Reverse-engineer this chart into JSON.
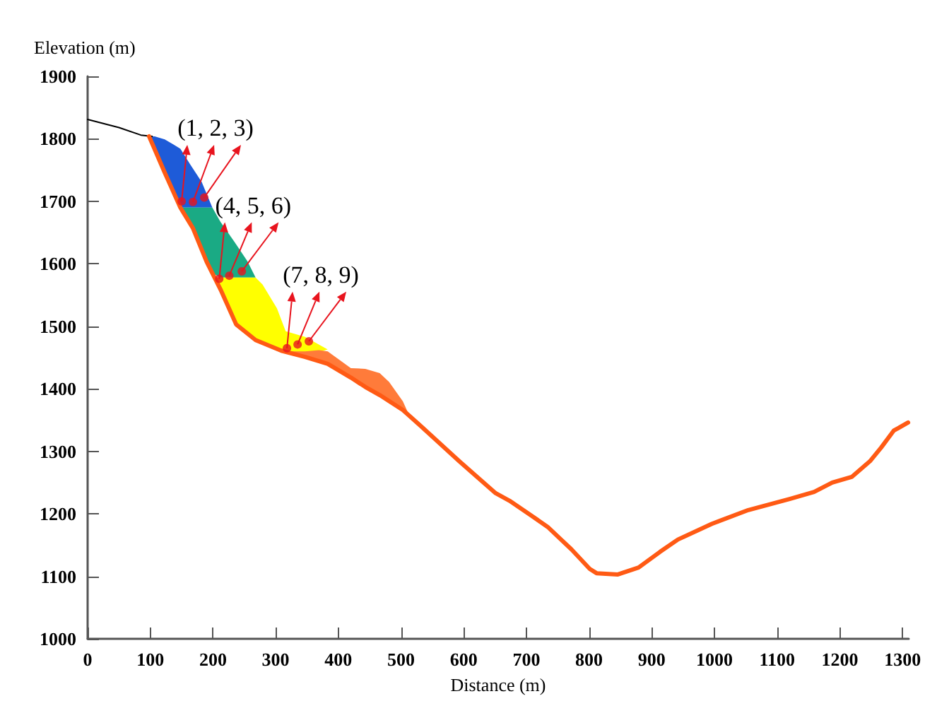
{
  "chart_data": {
    "type": "line",
    "xlabel": "Distance (m)",
    "ylabel": "Elevation (m)",
    "xlim": [
      0,
      1310
    ],
    "xticks": [
      0,
      100,
      200,
      300,
      400,
      500,
      600,
      700,
      800,
      900,
      1000,
      1100,
      1200,
      1300
    ],
    "ylim": [
      1000,
      1900
    ],
    "yticks": [
      1000,
      1100,
      1200,
      1300,
      1400,
      1500,
      1600,
      1700,
      1800,
      1900
    ],
    "grid": false,
    "line_style": "solid",
    "series": [
      {
        "type": "area",
        "color": "#1e5bd8",
        "x": [
          100,
          107,
          123,
          137,
          148,
          163,
          182,
          199,
          182,
          163,
          148,
          137,
          123,
          107
        ],
        "values": [
          1804,
          1804,
          1799,
          1791,
          1784,
          1760,
          1731,
          1690,
          1690,
          1690,
          1690,
          1715,
          1746,
          1786
        ]
      },
      {
        "type": "area",
        "color": "#1aaa84",
        "x": [
          148,
          168,
          190,
          199,
          212,
          235,
          255,
          268,
          255,
          235,
          212,
          199,
          190,
          168
        ],
        "values": [
          1690,
          1690,
          1690,
          1690,
          1667,
          1634,
          1604,
          1578,
          1578,
          1578,
          1578,
          1585,
          1603,
          1657
        ]
      },
      {
        "type": "area",
        "color": "#ffff00",
        "x": [
          205,
          237,
          268,
          279,
          302,
          316,
          347,
          383,
          347,
          316,
          302,
          279,
          268,
          237,
          212
        ],
        "values": [
          1578,
          1578,
          1578,
          1567,
          1529,
          1492,
          1483,
          1463,
          1451,
          1460,
          1466,
          1474,
          1478,
          1503,
          1559
        ]
      },
      {
        "type": "area",
        "color": "#ff7b3a",
        "x": [
          315,
          347,
          369,
          383,
          420,
          443,
          466,
          481,
          503,
          511,
          532,
          503,
          481,
          466,
          443,
          420,
          383,
          369,
          347
        ],
        "values": [
          1460,
          1460,
          1462,
          1460,
          1433,
          1432,
          1425,
          1411,
          1380,
          1362,
          1340,
          1366,
          1381,
          1390,
          1403,
          1418,
          1440,
          1445,
          1451
        ]
      },
      {
        "type": "line",
        "color": "#000000",
        "x": [
          0,
          50,
          85,
          103
        ],
        "values": [
          1831,
          1818,
          1806,
          1804
        ]
      },
      {
        "color": "#ff5a14",
        "x": [
          98,
          123,
          148,
          168,
          190,
          212,
          237,
          268,
          309,
          347,
          383,
          420,
          443,
          466,
          503,
          532,
          593,
          651,
          673,
          711,
          734,
          772,
          801,
          812,
          846,
          879,
          913,
          942,
          996,
          1054,
          1121,
          1159,
          1188,
          1219,
          1248,
          1266,
          1286,
          1309
        ],
        "values": [
          1804,
          1746,
          1690,
          1657,
          1603,
          1559,
          1503,
          1478,
          1461,
          1451,
          1440,
          1418,
          1403,
          1390,
          1366,
          1340,
          1284,
          1233,
          1221,
          1195,
          1179,
          1143,
          1112,
          1105,
          1103,
          1114,
          1139,
          1159,
          1184,
          1206,
          1224,
          1235,
          1250,
          1259,
          1284,
          1306,
          1333,
          1346
        ]
      },
      {
        "type": "scatter",
        "marker": "circle",
        "color": "#e8141e",
        "x": [
          150,
          168,
          186
        ],
        "values": [
          1700,
          1699,
          1706
        ]
      },
      {
        "type": "scatter",
        "marker": "circle",
        "color": "#e8141e",
        "x": [
          210,
          226,
          246
        ],
        "values": [
          1576,
          1581,
          1588
        ]
      },
      {
        "type": "scatter",
        "marker": "circle",
        "color": "#e8141e",
        "x": [
          318,
          335,
          353
        ],
        "values": [
          1465,
          1471,
          1476
        ]
      }
    ],
    "annotations": [
      {
        "text": "(1, 2, 3)",
        "x": 150,
        "y": 1700
      },
      {
        "text": "(4, 5, 6)",
        "x": 210,
        "y": 1576
      },
      {
        "text": "(7, 8, 9)",
        "x": 318,
        "y": 1465
      }
    ]
  }
}
